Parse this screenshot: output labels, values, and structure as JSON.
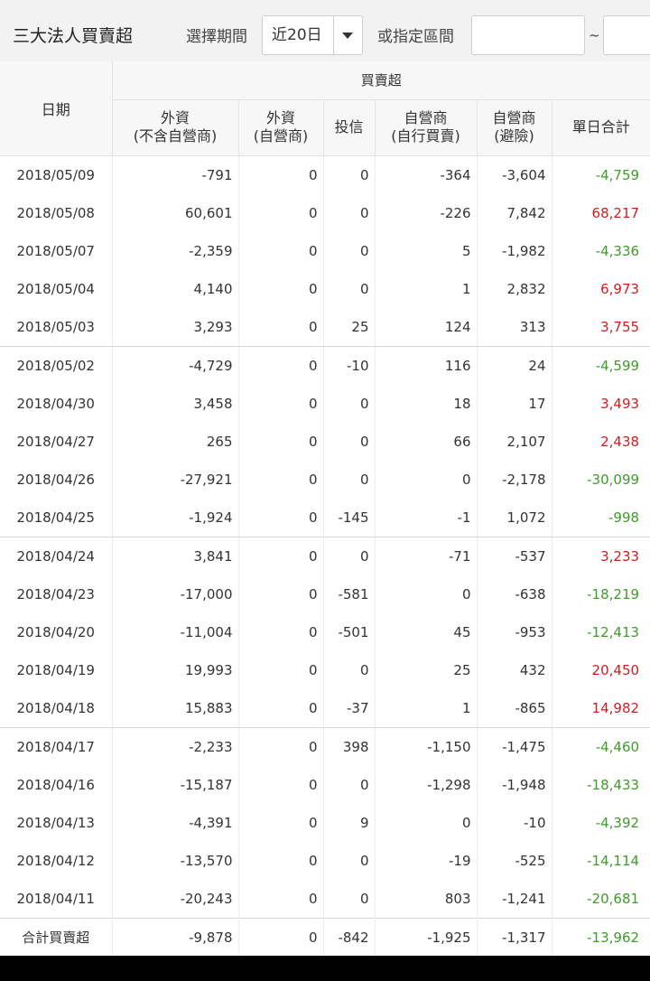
{
  "toolbar": {
    "title": "三大法人買賣超",
    "period_label": "選擇期間",
    "period_value": "近20日",
    "range_label": "或指定區間",
    "range_separator": "~",
    "range_start_placeholder": "",
    "range_end_placeholder": ""
  },
  "table": {
    "header_group": "買賣超",
    "date_header": "日期",
    "columns": [
      {
        "line1": "外資",
        "line2": "(不含自營商)"
      },
      {
        "line1": "外資",
        "line2": "(自營商)"
      },
      {
        "line1": "投信",
        "line2": ""
      },
      {
        "line1": "自營商",
        "line2": "(自行買賣)"
      },
      {
        "line1": "自營商",
        "line2": "(避險)"
      },
      {
        "line1": "單日合計",
        "line2": ""
      }
    ],
    "rows": [
      {
        "date": "2018/05/09",
        "v": [
          "-791",
          "0",
          "0",
          "-364",
          "-3,604",
          "-4,759"
        ]
      },
      {
        "date": "2018/05/08",
        "v": [
          "60,601",
          "0",
          "0",
          "-226",
          "7,842",
          "68,217"
        ]
      },
      {
        "date": "2018/05/07",
        "v": [
          "-2,359",
          "0",
          "0",
          "5",
          "-1,982",
          "-4,336"
        ]
      },
      {
        "date": "2018/05/04",
        "v": [
          "4,140",
          "0",
          "0",
          "1",
          "2,832",
          "6,973"
        ]
      },
      {
        "date": "2018/05/03",
        "v": [
          "3,293",
          "0",
          "25",
          "124",
          "313",
          "3,755"
        ]
      },
      {
        "date": "2018/05/02",
        "v": [
          "-4,729",
          "0",
          "-10",
          "116",
          "24",
          "-4,599"
        ]
      },
      {
        "date": "2018/04/30",
        "v": [
          "3,458",
          "0",
          "0",
          "18",
          "17",
          "3,493"
        ]
      },
      {
        "date": "2018/04/27",
        "v": [
          "265",
          "0",
          "0",
          "66",
          "2,107",
          "2,438"
        ]
      },
      {
        "date": "2018/04/26",
        "v": [
          "-27,921",
          "0",
          "0",
          "0",
          "-2,178",
          "-30,099"
        ]
      },
      {
        "date": "2018/04/25",
        "v": [
          "-1,924",
          "0",
          "-145",
          "-1",
          "1,072",
          "-998"
        ]
      },
      {
        "date": "2018/04/24",
        "v": [
          "3,841",
          "0",
          "0",
          "-71",
          "-537",
          "3,233"
        ]
      },
      {
        "date": "2018/04/23",
        "v": [
          "-17,000",
          "0",
          "-581",
          "0",
          "-638",
          "-18,219"
        ]
      },
      {
        "date": "2018/04/20",
        "v": [
          "-11,004",
          "0",
          "-501",
          "45",
          "-953",
          "-12,413"
        ]
      },
      {
        "date": "2018/04/19",
        "v": [
          "19,993",
          "0",
          "0",
          "25",
          "432",
          "20,450"
        ]
      },
      {
        "date": "2018/04/18",
        "v": [
          "15,883",
          "0",
          "-37",
          "1",
          "-865",
          "14,982"
        ]
      },
      {
        "date": "2018/04/17",
        "v": [
          "-2,233",
          "0",
          "398",
          "-1,150",
          "-1,475",
          "-4,460"
        ]
      },
      {
        "date": "2018/04/16",
        "v": [
          "-15,187",
          "0",
          "0",
          "-1,298",
          "-1,948",
          "-18,433"
        ]
      },
      {
        "date": "2018/04/13",
        "v": [
          "-4,391",
          "0",
          "9",
          "0",
          "-10",
          "-4,392"
        ]
      },
      {
        "date": "2018/04/12",
        "v": [
          "-13,570",
          "0",
          "0",
          "-19",
          "-525",
          "-14,114"
        ]
      },
      {
        "date": "2018/04/11",
        "v": [
          "-20,243",
          "0",
          "0",
          "803",
          "-1,241",
          "-20,681"
        ]
      }
    ],
    "summary": {
      "label": "合計買賣超",
      "v": [
        "-9,878",
        "0",
        "-842",
        "-1,925",
        "-1,317",
        "-13,962"
      ]
    }
  },
  "colors": {
    "positive_total": "#cc1f1f",
    "negative_total": "#3f9b2a",
    "header_bg": "#f7f7f7",
    "toolbar_bg": "#f2f2f2"
  },
  "icons": {
    "dropdown": "caret-down-icon"
  }
}
